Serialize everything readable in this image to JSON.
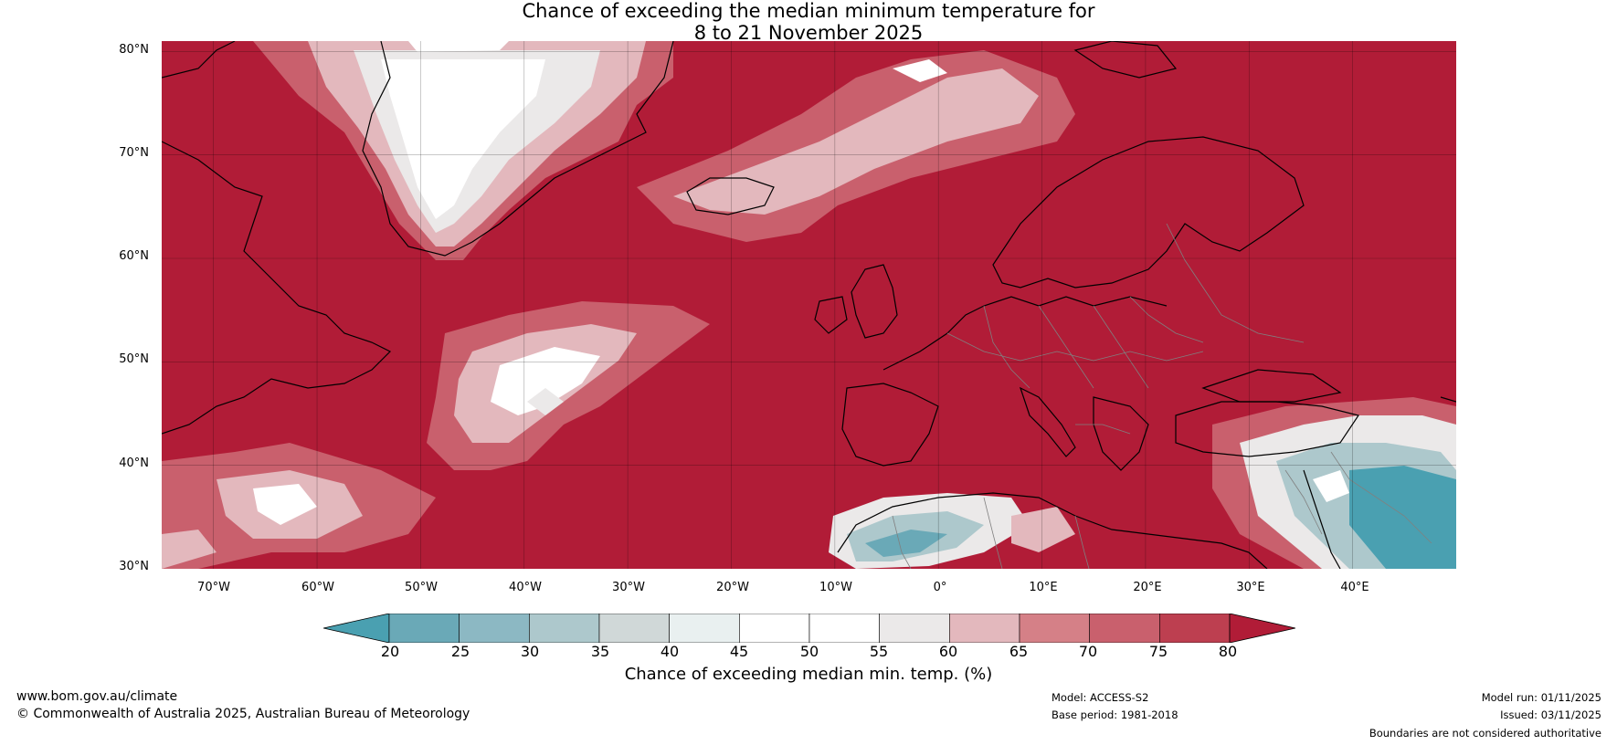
{
  "title_line1": "Chance of exceeding the median minimum temperature for",
  "title_line2": "8 to 21 November 2025",
  "lat_labels": [
    "80°N",
    "70°N",
    "60°N",
    "50°N",
    "40°N",
    "30°N"
  ],
  "lon_labels": [
    "70°W",
    "60°W",
    "50°W",
    "40°W",
    "30°W",
    "20°W",
    "10°W",
    "0°",
    "10°E",
    "20°E",
    "30°E",
    "40°E"
  ],
  "map": {
    "lon_range": [
      -75,
      50
    ],
    "lat_range": [
      30,
      81
    ],
    "background_color": "#b11c37",
    "grid": true
  },
  "colorbar": {
    "ticks": [
      "20",
      "25",
      "30",
      "35",
      "40",
      "45",
      "50",
      "55",
      "60",
      "65",
      "70",
      "75",
      "80"
    ],
    "colors": [
      "#4aa0b1",
      "#6aa9b7",
      "#8cb8c3",
      "#adc8cc",
      "#d0d8d8",
      "#e9f0f0",
      "#ffffff",
      "#ffffff",
      "#ebe9e9",
      "#e3b8bd",
      "#d58087",
      "#c9606d",
      "#bd3f50",
      "#b11c37"
    ],
    "label": "Chance of exceeding median min. temp. (%)"
  },
  "footer": {
    "url": "www.bom.gov.au/climate",
    "copyright": "© Commonwealth of Australia 2025, Australian Bureau of Meteorology",
    "model": "Model: ACCESS-S2",
    "base_period": "Base period: 1981-2018",
    "model_run": "Model run: 01/11/2025",
    "issued": "Issued: 03/11/2025",
    "boundaries": "Boundaries are not considered authoritative"
  }
}
